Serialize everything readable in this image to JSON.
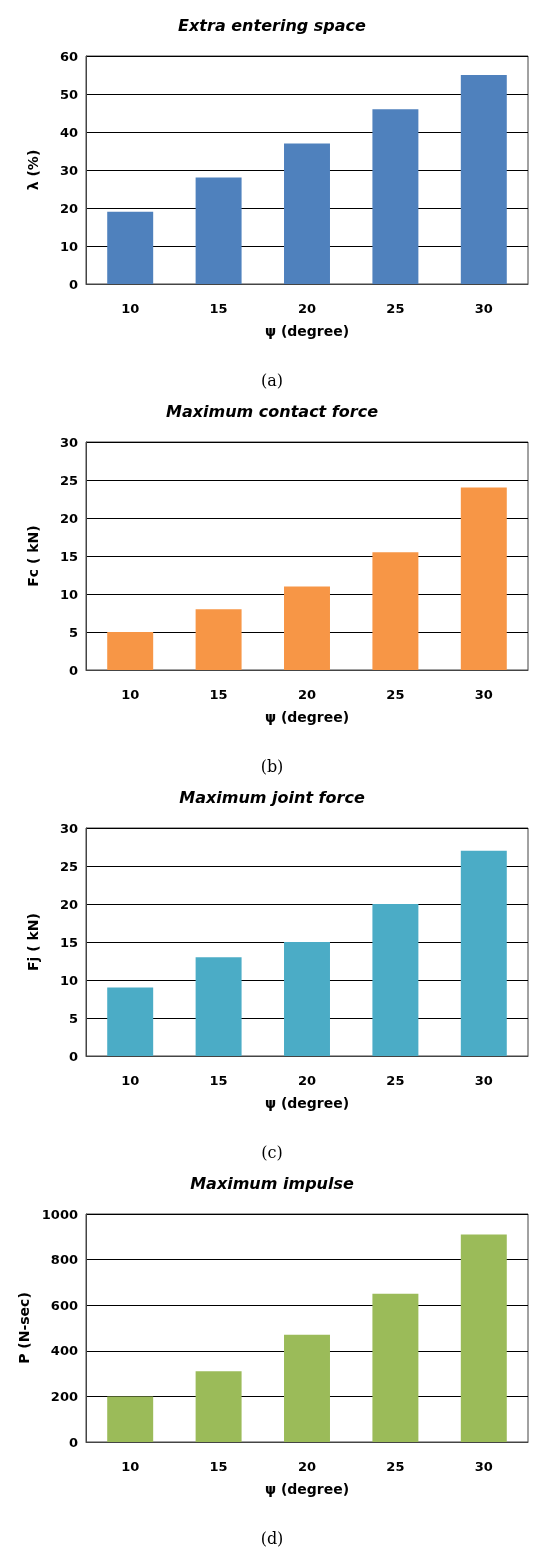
{
  "chart_data": [
    {
      "type": "bar",
      "title": "Extra entering space",
      "xlabel": "ψ (degree)",
      "ylabel": "λ (%)",
      "categories": [
        "10",
        "15",
        "20",
        "25",
        "30"
      ],
      "values": [
        19,
        28,
        37,
        46,
        55
      ],
      "color": "#4f81bd",
      "ylim": [
        0,
        60
      ],
      "yticks": [
        0,
        10,
        20,
        30,
        40,
        50,
        60
      ],
      "grid": "y",
      "annotations": [
        "(a)"
      ]
    },
    {
      "type": "bar",
      "title": "Maximum contact force",
      "xlabel": "ψ (degree)",
      "ylabel": "Fc ( kN)",
      "categories": [
        "10",
        "15",
        "20",
        "25",
        "30"
      ],
      "values": [
        5,
        8,
        11,
        15.5,
        24
      ],
      "color": "#f79646",
      "ylim": [
        0,
        30
      ],
      "yticks": [
        0,
        5,
        10,
        15,
        20,
        25,
        30
      ],
      "grid": "y",
      "annotations": [
        "(b)"
      ]
    },
    {
      "type": "bar",
      "title": "Maximum joint force",
      "xlabel": "ψ (degree)",
      "ylabel": "Fj ( kN)",
      "categories": [
        "10",
        "15",
        "20",
        "25",
        "30"
      ],
      "values": [
        9,
        13,
        15,
        20,
        27
      ],
      "color": "#4bacc6",
      "ylim": [
        0,
        30
      ],
      "yticks": [
        0,
        5,
        10,
        15,
        20,
        25,
        30
      ],
      "grid": "y",
      "annotations": [
        "(c)"
      ]
    },
    {
      "type": "bar",
      "title": "Maximum impulse",
      "xlabel": "ψ (degree)",
      "ylabel": "P (N-sec)",
      "categories": [
        "10",
        "15",
        "20",
        "25",
        "30"
      ],
      "values": [
        200,
        310,
        470,
        650,
        910
      ],
      "color": "#9bbb59",
      "ylim": [
        0,
        1000
      ],
      "yticks": [
        0,
        200,
        400,
        600,
        800,
        1000
      ],
      "grid": "y",
      "annotations": [
        "(d)"
      ]
    }
  ]
}
